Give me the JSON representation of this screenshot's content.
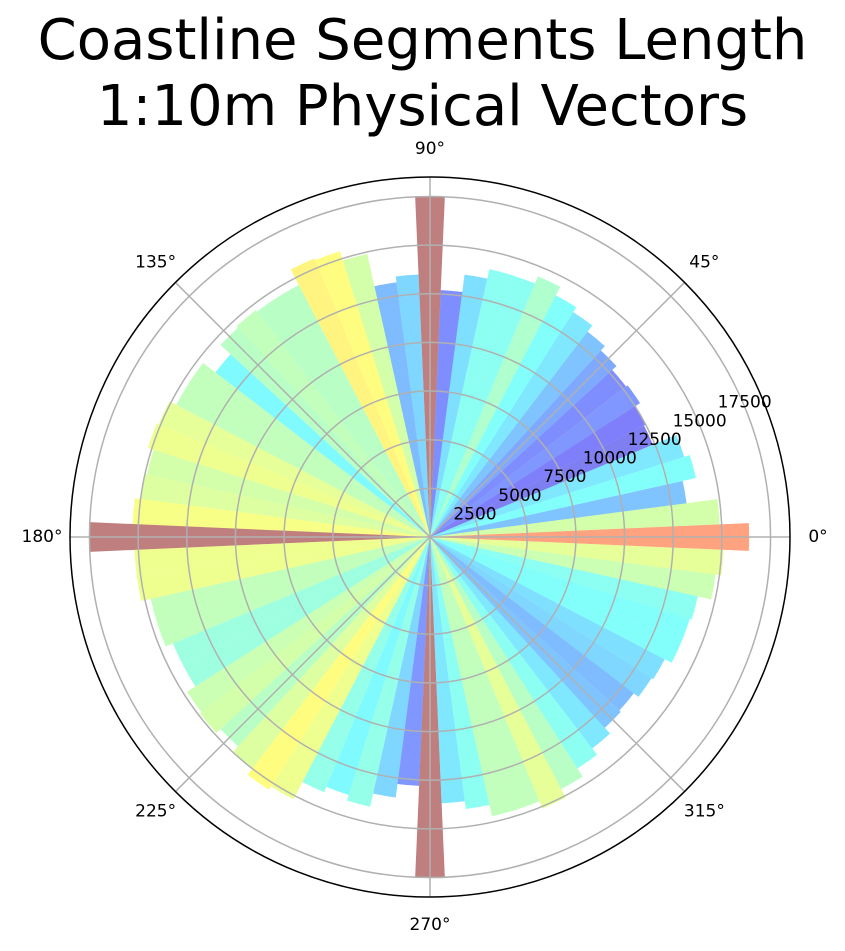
{
  "chart_data": {
    "type": "bar",
    "subtype": "polar",
    "title_lines": [
      "Coastline Segments Length",
      "1:10m Physical Vectors"
    ],
    "theta_unit": "degrees",
    "bin_width_deg": 5,
    "rlim": [
      0,
      18500
    ],
    "r_ticks": [
      2500,
      5000,
      7500,
      10000,
      12500,
      15000,
      17500
    ],
    "theta_ticks": [
      "0°",
      "45°",
      "90°",
      "135°",
      "180°",
      "225°",
      "270°",
      "315°"
    ],
    "grid": true,
    "colormap": "jet (bars drawn semi-transparent)",
    "theta": [
      0,
      5,
      10,
      15,
      20,
      25,
      30,
      35,
      40,
      45,
      50,
      55,
      60,
      65,
      70,
      75,
      80,
      85,
      90,
      95,
      100,
      105,
      110,
      115,
      120,
      125,
      130,
      135,
      140,
      145,
      150,
      155,
      160,
      165,
      170,
      175,
      180,
      185,
      190,
      195,
      200,
      205,
      210,
      215,
      220,
      225,
      230,
      235,
      240,
      245,
      250,
      255,
      260,
      265,
      270,
      275,
      280,
      285,
      290,
      295,
      300,
      305,
      310,
      315,
      320,
      325,
      330,
      335,
      340,
      345,
      350,
      355
    ],
    "values": [
      16400,
      14900,
      13300,
      14000,
      13700,
      12400,
      12500,
      12800,
      12700,
      13000,
      13300,
      13700,
      14000,
      14500,
      14100,
      14100,
      13600,
      12700,
      17500,
      13500,
      13200,
      14900,
      15400,
      15500,
      14600,
      14600,
      14700,
      14600,
      13900,
      14700,
      14700,
      15100,
      15200,
      14900,
      15000,
      15300,
      17500,
      15200,
      15200,
      14700,
      14700,
      14300,
      14300,
      14800,
      14900,
      14600,
      15000,
      15400,
      15200,
      14200,
      13900,
      14200,
      13500,
      12800,
      17500,
      13700,
      14100,
      14700,
      14700,
      15100,
      14600,
      14100,
      13700,
      13300,
      13200,
      13500,
      13600,
      14000,
      14000,
      14100,
      14800,
      15100
    ]
  }
}
